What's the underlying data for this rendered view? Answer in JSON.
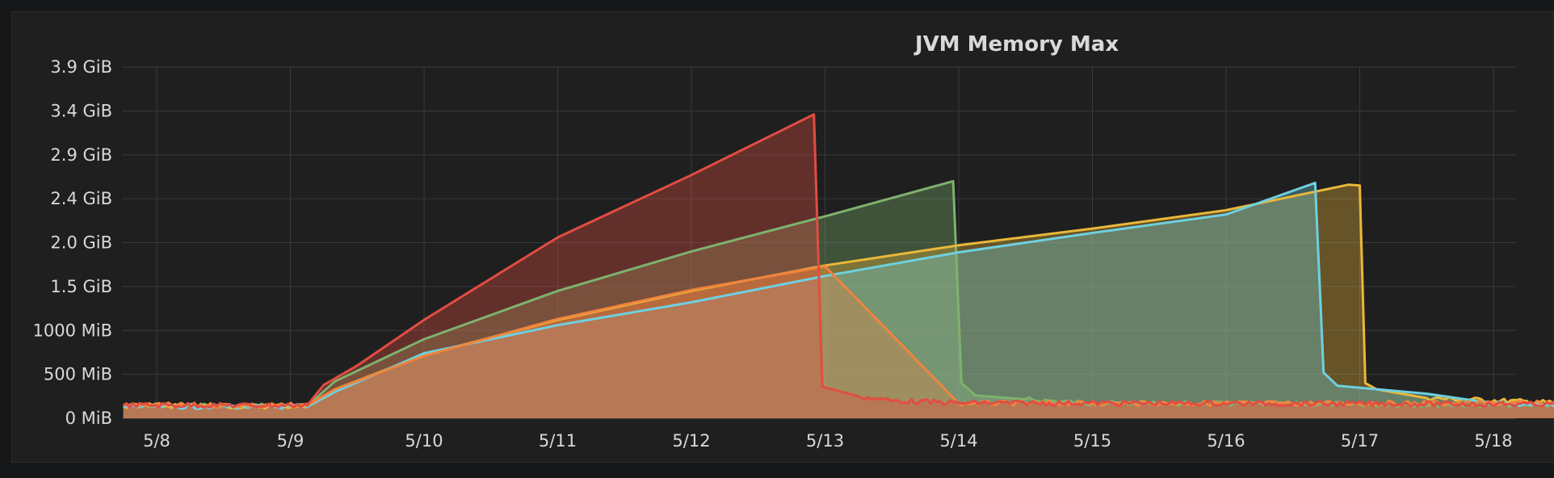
{
  "panel": {
    "title": "JVM Memory Max"
  },
  "chart_data": {
    "type": "area",
    "title": "JVM Memory Max",
    "xlabel": "",
    "ylabel": "",
    "y_unit": "MiB",
    "ylim": [
      0,
      4000
    ],
    "xlim": [
      "5/7 18:00",
      "5/18 12:00"
    ],
    "grid": true,
    "legend": "none",
    "x_ticks": [
      "5/8",
      "5/9",
      "5/10",
      "5/11",
      "5/12",
      "5/13",
      "5/14",
      "5/15",
      "5/16",
      "5/17",
      "5/18"
    ],
    "y_ticks": [
      {
        "value": 0,
        "label": "0 MiB"
      },
      {
        "value": 500,
        "label": "500 MiB"
      },
      {
        "value": 1000,
        "label": "1000 MiB"
      },
      {
        "value": 1500,
        "label": "1.5 GiB"
      },
      {
        "value": 2000,
        "label": "2.0 GiB"
      },
      {
        "value": 2500,
        "label": "2.4 GiB"
      },
      {
        "value": 3000,
        "label": "2.9 GiB"
      },
      {
        "value": 3500,
        "label": "3.4 GiB"
      },
      {
        "value": 4000,
        "label": "3.9 GiB"
      }
    ],
    "series": [
      {
        "color": "#7eb26d",
        "points": [
          [
            "5/7 18:00",
            145
          ],
          [
            "5/9 00:00",
            140
          ],
          [
            "5/9 03:00",
            140
          ],
          [
            "5/9 08:00",
            420
          ],
          [
            "5/10 00:00",
            900
          ],
          [
            "5/11 00:00",
            1450
          ],
          [
            "5/12 00:00",
            1900
          ],
          [
            "5/13 00:00",
            2300
          ],
          [
            "5/13 23:00",
            2700
          ],
          [
            "5/14 00:30",
            400
          ],
          [
            "5/14 03:00",
            260
          ],
          [
            "5/14 12:00",
            215
          ],
          [
            "5/15 00:00",
            170
          ],
          [
            "5/18 12:00",
            150
          ]
        ]
      },
      {
        "color": "#eab839",
        "points": [
          [
            "5/7 18:00",
            140
          ],
          [
            "5/9 03:00",
            135
          ],
          [
            "5/9 08:00",
            330
          ],
          [
            "5/10 00:00",
            720
          ],
          [
            "5/11 00:00",
            1120
          ],
          [
            "5/12 00:00",
            1450
          ],
          [
            "5/13 00:00",
            1740
          ],
          [
            "5/14 00:00",
            1970
          ],
          [
            "5/15 00:00",
            2160
          ],
          [
            "5/16 00:00",
            2370
          ],
          [
            "5/16 22:00",
            2660
          ],
          [
            "5/17 00:00",
            2650
          ],
          [
            "5/17 01:00",
            400
          ],
          [
            "5/17 03:00",
            330
          ],
          [
            "5/17 12:00",
            230
          ],
          [
            "5/18 12:00",
            175
          ]
        ]
      },
      {
        "color": "#6ed0e0",
        "points": [
          [
            "5/7 18:00",
            135
          ],
          [
            "5/9 03:00",
            130
          ],
          [
            "5/9 08:00",
            300
          ],
          [
            "5/10 00:00",
            740
          ],
          [
            "5/11 00:00",
            1060
          ],
          [
            "5/12 00:00",
            1320
          ],
          [
            "5/13 00:00",
            1620
          ],
          [
            "5/14 00:00",
            1890
          ],
          [
            "5/15 00:00",
            2110
          ],
          [
            "5/16 00:00",
            2320
          ],
          [
            "5/16 16:00",
            2680
          ],
          [
            "5/16 17:30",
            520
          ],
          [
            "5/16 20:00",
            370
          ],
          [
            "5/17 12:00",
            280
          ],
          [
            "5/18 00:00",
            170
          ],
          [
            "5/18 12:00",
            150
          ]
        ]
      },
      {
        "color": "#ef843c",
        "points": [
          [
            "5/7 18:00",
            150
          ],
          [
            "5/9 03:00",
            145
          ],
          [
            "5/9 08:00",
            330
          ],
          [
            "5/10 00:00",
            710
          ],
          [
            "5/11 00:00",
            1130
          ],
          [
            "5/12 00:00",
            1460
          ],
          [
            "5/13 00:00",
            1730
          ],
          [
            "5/14 00:00",
            170
          ],
          [
            "5/18 12:00",
            170
          ]
        ]
      },
      {
        "color": "#e24d42",
        "points": [
          [
            "5/7 18:00",
            150
          ],
          [
            "5/9 00:00",
            145
          ],
          [
            "5/9 03:00",
            145
          ],
          [
            "5/9 06:00",
            380
          ],
          [
            "5/9 12:00",
            600
          ],
          [
            "5/10 00:00",
            1120
          ],
          [
            "5/11 00:00",
            2060
          ],
          [
            "5/12 00:00",
            2770
          ],
          [
            "5/12 22:00",
            3460
          ],
          [
            "5/12 23:30",
            360
          ],
          [
            "5/13 06:00",
            250
          ],
          [
            "5/13 12:00",
            200
          ],
          [
            "5/14 00:00",
            175
          ],
          [
            "5/18 12:00",
            160
          ]
        ]
      }
    ]
  }
}
